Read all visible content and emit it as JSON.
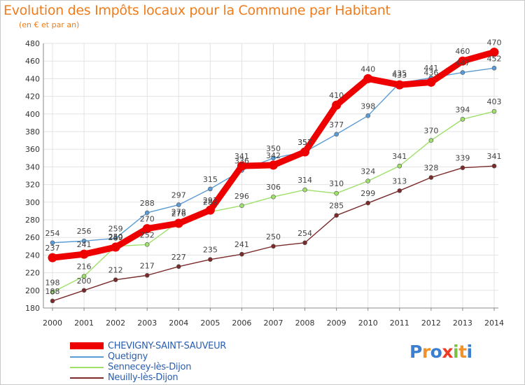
{
  "title": "Evolution des Impôts locaux pour la Commune par Habitant",
  "subtitle": "(en € et par an)",
  "logo": {
    "text": "Proxiti",
    "letters": [
      "P",
      "r",
      "o",
      "x",
      "i",
      "t",
      "i"
    ],
    "colors": [
      "#3a7fd0",
      "#f0932b",
      "#3a7fd0",
      "#ef3b24",
      "#7cc242",
      "#f0932b",
      "#3a7fd0"
    ]
  },
  "chart_data": {
    "type": "line",
    "x": [
      "2000",
      "2001",
      "2002",
      "2003",
      "2004",
      "2005",
      "2006",
      "2007",
      "2008",
      "2009",
      "2010",
      "2011",
      "2012",
      "2013",
      "2014"
    ],
    "ylim": [
      180,
      480
    ],
    "yticks": [
      "180",
      "200",
      "220",
      "240",
      "260",
      "280",
      "300",
      "320",
      "340",
      "360",
      "380",
      "400",
      "420",
      "440",
      "460",
      "480"
    ],
    "grid": true,
    "legend_position": "bottom-left",
    "series": [
      {
        "name": "CHEVIGNY-SAINT-SAUVEUR",
        "color": "#ee0000",
        "values": [
          237,
          241,
          249,
          270,
          276,
          291,
          341,
          342,
          357,
          410,
          440,
          433,
          436,
          460,
          470
        ],
        "labels": [
          "237",
          "241",
          "249",
          "270",
          "276",
          "291",
          "341",
          "342",
          "357",
          "410",
          "440",
          "433",
          "436",
          "460",
          "470"
        ]
      },
      {
        "name": "Quetigny",
        "color": "#5b9bd5",
        "values": [
          254,
          256,
          259,
          288,
          297,
          315,
          336,
          350,
          357,
          377,
          398,
          435,
          441,
          447,
          452
        ],
        "labels": [
          "254",
          "256",
          "259",
          "288",
          "297",
          "315",
          "336",
          "350",
          "357",
          "377",
          "398",
          "435",
          "441",
          "447",
          "452"
        ]
      },
      {
        "name": "Sennecey-lès-Dijon",
        "color": "#9ee06a",
        "values": [
          198,
          216,
          250,
          252,
          278,
          289,
          296,
          306,
          314,
          310,
          324,
          341,
          370,
          394,
          403
        ],
        "labels": [
          "198",
          "216",
          "250",
          "252",
          "278",
          "289",
          "296",
          "306",
          "314",
          "310",
          "324",
          "341",
          "370",
          "394",
          "403"
        ]
      },
      {
        "name": "Neuilly-lès-Dijon",
        "color": "#7a2a2a",
        "values": [
          188,
          200,
          212,
          217,
          227,
          235,
          241,
          250,
          254,
          285,
          299,
          313,
          328,
          339,
          341
        ],
        "labels": [
          "188",
          "200",
          "212",
          "217",
          "227",
          "235",
          "241",
          "250",
          "254",
          "285",
          "299",
          "313",
          "328",
          "339",
          "341"
        ]
      }
    ]
  }
}
